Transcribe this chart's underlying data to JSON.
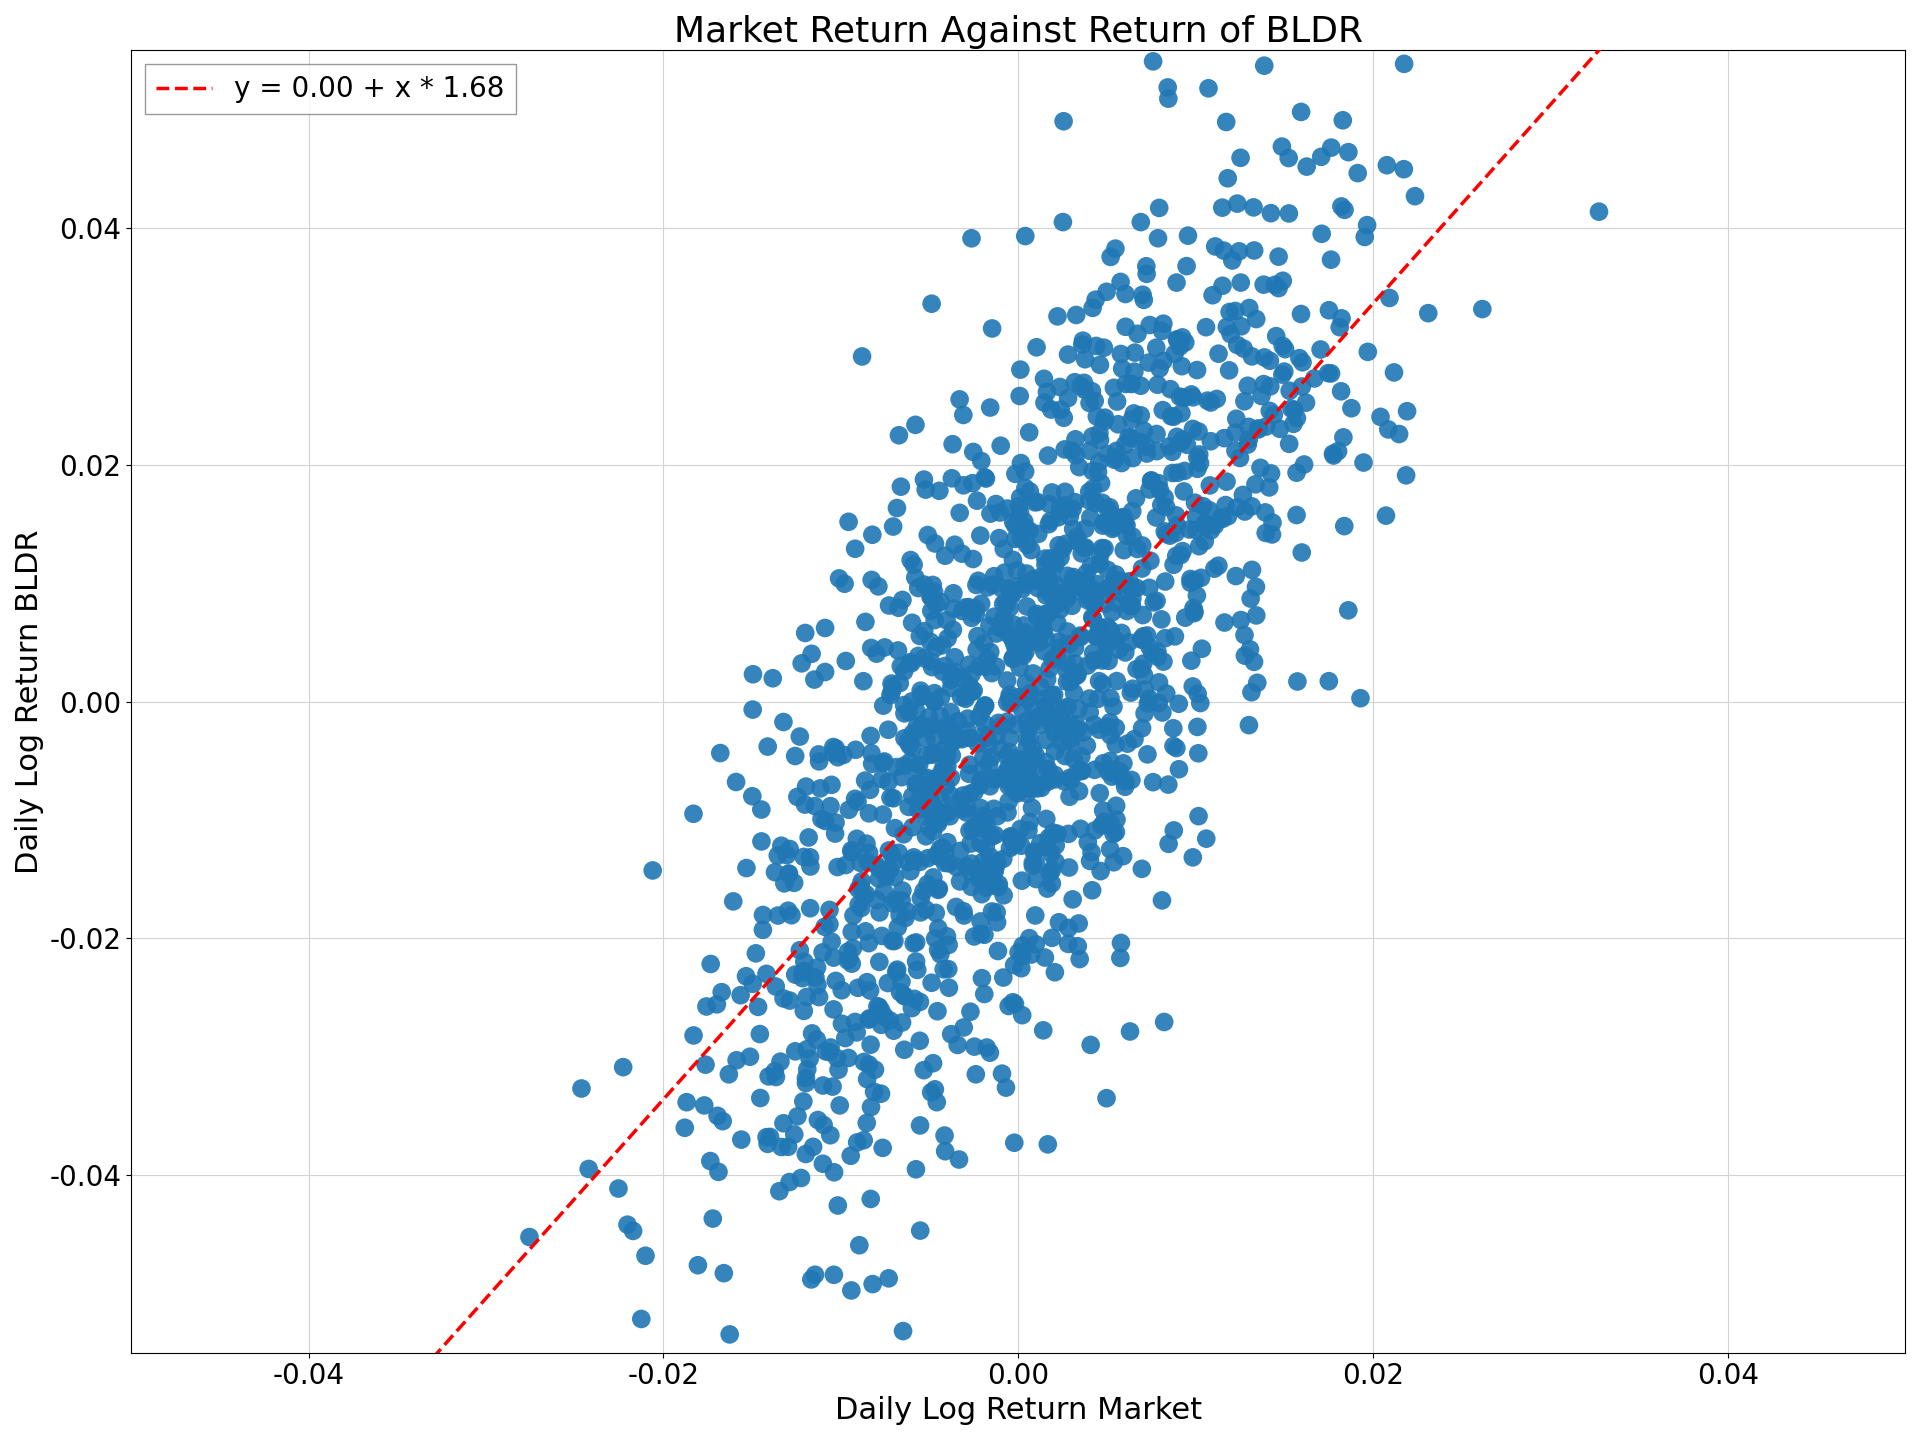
{
  "title": "Market Return Against Return of BLDR",
  "xlabel": "Daily Log Return Market",
  "ylabel": "Daily Log Return BLDR",
  "legend_label": "y = 0.00 + x * 1.68",
  "intercept": 0.0,
  "slope": 1.68,
  "dot_color": "#1f77b4",
  "line_color": "#ff0000",
  "dot_size": 180,
  "dot_alpha": 0.9,
  "xlim": [
    -0.05,
    0.05
  ],
  "ylim": [
    -0.055,
    0.055
  ],
  "xticks": [
    -0.04,
    -0.02,
    0.0,
    0.02,
    0.04
  ],
  "yticks": [
    -0.04,
    -0.02,
    0.0,
    0.02,
    0.04
  ],
  "seed": 42,
  "n_points": 1500,
  "market_std": 0.0085,
  "noise_std": 0.014,
  "title_fontsize": 26,
  "label_fontsize": 22,
  "tick_fontsize": 20,
  "legend_fontsize": 20,
  "figsize": [
    19.2,
    14.4
  ],
  "dpi": 100
}
